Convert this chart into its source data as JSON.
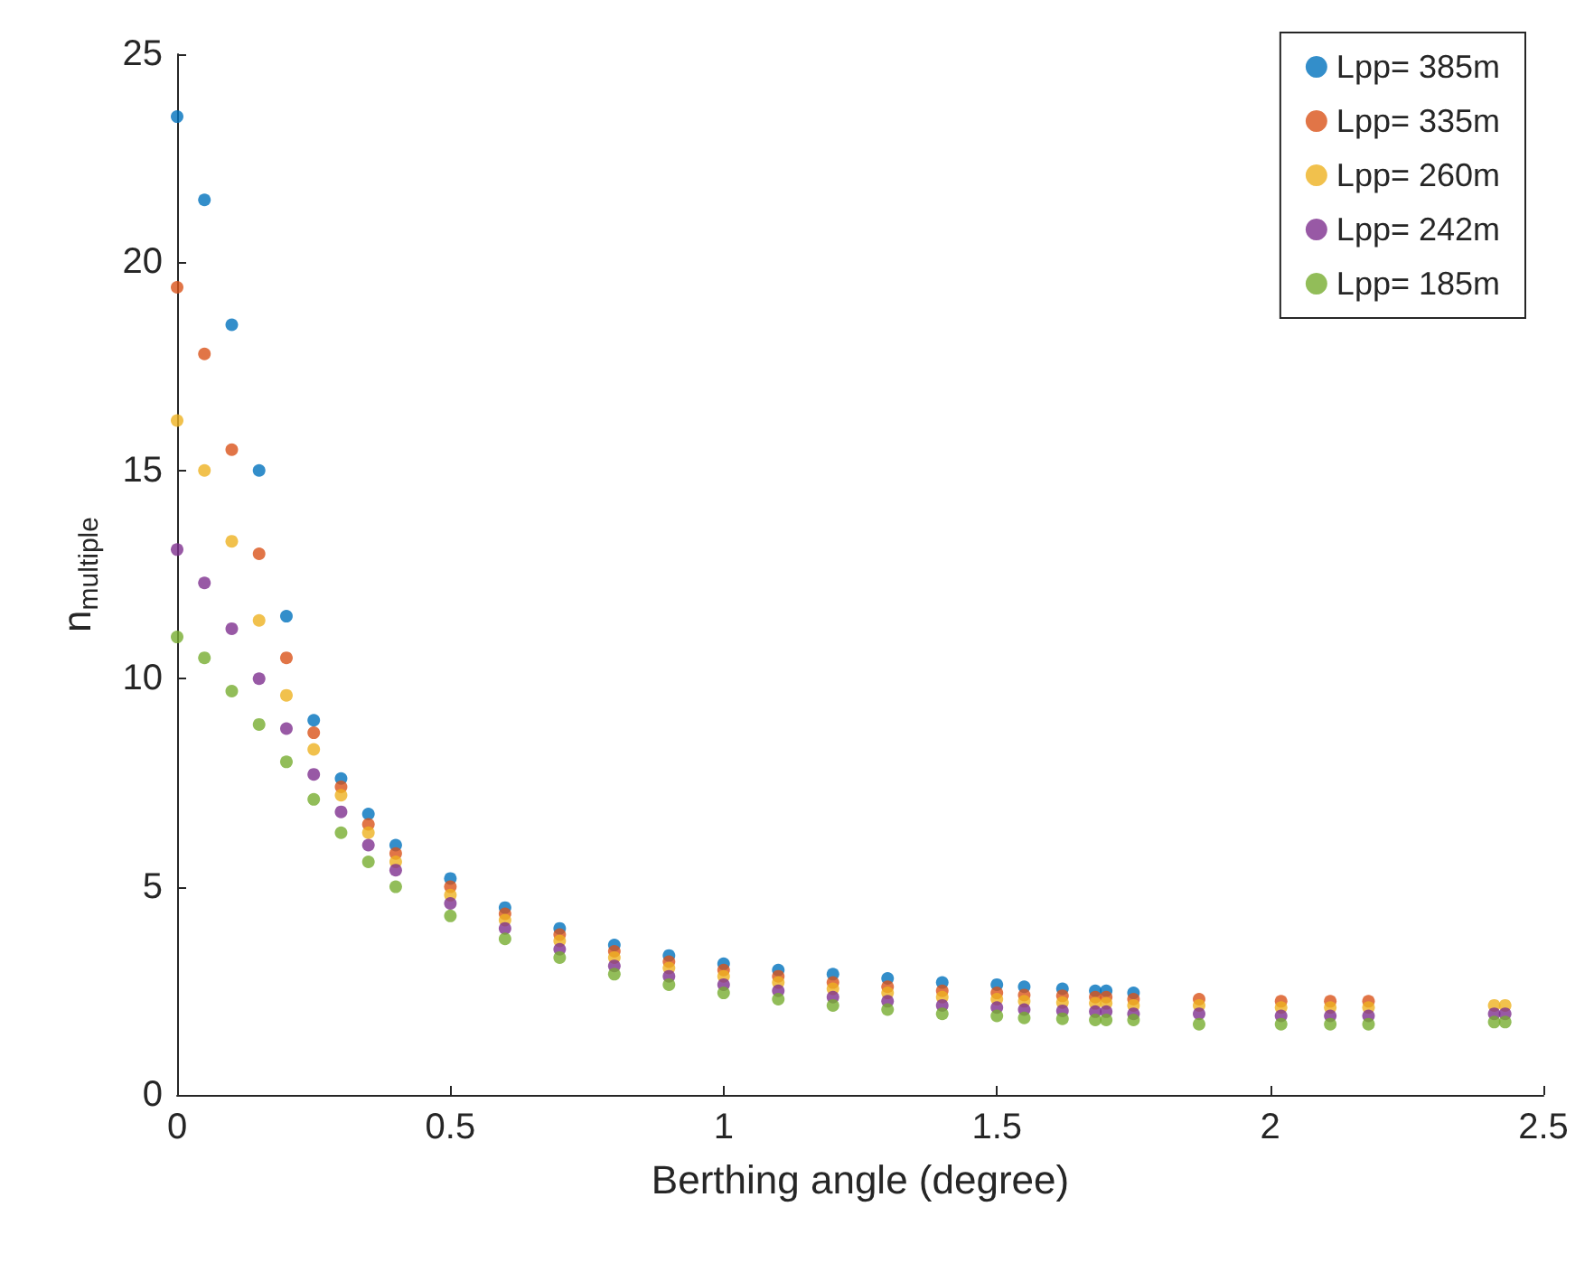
{
  "chart_data": {
    "type": "scatter",
    "xlabel": "Berthing angle (degree)",
    "ylabel": "n$_{multiple}$",
    "x": [
      0,
      0.05,
      0.1,
      0.15,
      0.2,
      0.25,
      0.3,
      0.35,
      0.4,
      0.5,
      0.6,
      0.7,
      0.8,
      0.9,
      1.0,
      1.1,
      1.2,
      1.3,
      1.4,
      1.5,
      1.55,
      1.62,
      1.68,
      1.7,
      1.75,
      1.87,
      2.02,
      2.11,
      2.18,
      2.41,
      2.43
    ],
    "series": [
      {
        "name": "Lpp= 385m",
        "color": "#0072bd",
        "values": [
          23.5,
          21.5,
          18.5,
          15,
          11.5,
          9,
          7.6,
          6.75,
          6.0,
          5.2,
          4.5,
          4.0,
          3.6,
          3.35,
          3.15,
          3.0,
          2.9,
          2.8,
          2.7,
          2.65,
          2.6,
          2.55,
          2.5,
          2.5,
          2.45,
          null,
          null,
          null,
          null,
          null,
          null
        ]
      },
      {
        "name": "Lpp= 335m",
        "color": "#d95319",
        "values": [
          19.4,
          17.8,
          15.5,
          13,
          10.5,
          8.7,
          7.4,
          6.5,
          5.8,
          5.0,
          4.35,
          3.85,
          3.45,
          3.2,
          3.0,
          2.85,
          2.7,
          2.6,
          2.5,
          2.45,
          2.4,
          2.38,
          2.35,
          2.35,
          2.3,
          2.3,
          2.25,
          2.25,
          2.25,
          null,
          null
        ]
      },
      {
        "name": "Lpp= 260m",
        "color": "#edb120",
        "values": [
          16.2,
          15,
          13.3,
          11.4,
          9.6,
          8.3,
          7.2,
          6.3,
          5.6,
          4.8,
          4.2,
          3.7,
          3.3,
          3.05,
          2.85,
          2.7,
          2.55,
          2.45,
          2.35,
          2.3,
          2.25,
          2.22,
          2.2,
          2.2,
          2.15,
          2.15,
          2.1,
          2.1,
          2.1,
          2.15,
          2.15
        ]
      },
      {
        "name": "Lpp= 242m",
        "color": "#7e2f8e",
        "values": [
          13.1,
          12.3,
          11.2,
          10,
          8.8,
          7.7,
          6.8,
          6.0,
          5.4,
          4.6,
          4.0,
          3.5,
          3.1,
          2.85,
          2.65,
          2.5,
          2.35,
          2.25,
          2.15,
          2.1,
          2.05,
          2.02,
          2.0,
          2.0,
          1.95,
          1.95,
          1.9,
          1.9,
          1.9,
          1.95,
          1.95
        ]
      },
      {
        "name": "Lpp= 185m",
        "color": "#77ac30",
        "values": [
          11,
          10.5,
          9.7,
          8.9,
          8.0,
          7.1,
          6.3,
          5.6,
          5.0,
          4.3,
          3.75,
          3.3,
          2.9,
          2.65,
          2.45,
          2.3,
          2.15,
          2.05,
          1.95,
          1.9,
          1.85,
          1.83,
          1.8,
          1.8,
          1.8,
          1.7,
          1.7,
          1.7,
          1.7,
          1.75,
          1.75
        ]
      }
    ],
    "xlim": [
      0,
      2.5
    ],
    "xticks": [
      0,
      0.5,
      1,
      1.5,
      2,
      2.5
    ],
    "ylim": [
      0,
      25
    ],
    "yticks": [
      0,
      5,
      10,
      15,
      20,
      25
    ],
    "grid": false,
    "legend": "top right",
    "marker": "circle"
  }
}
